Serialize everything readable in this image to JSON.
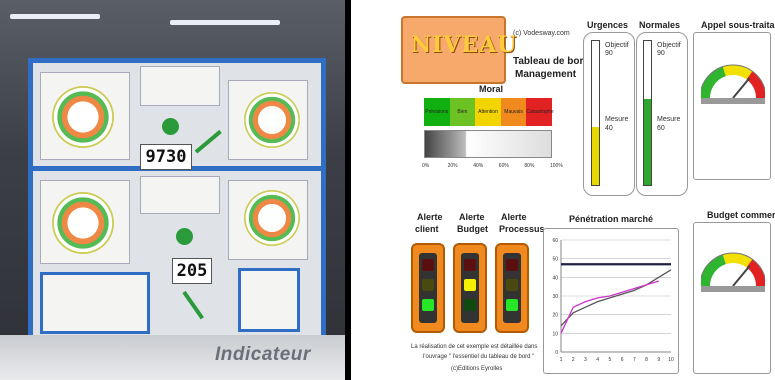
{
  "photo": {
    "counter_top": "9730",
    "counter_bottom": "205",
    "caption": "Indicateur"
  },
  "dashboard": {
    "scroll_title": "NIVEAU",
    "credit_site": "(c) Vodesway.com",
    "title_line1": "Tableau de bord",
    "title_line2": "Management",
    "moral": {
      "label": "Moral",
      "segments": [
        {
          "label": "Prévisions",
          "color": "#11b011"
        },
        {
          "label": "Bien",
          "color": "#6cc222"
        },
        {
          "label": "Attention",
          "color": "#f2d400"
        },
        {
          "label": "Mauvais",
          "color": "#f08a1e"
        },
        {
          "label": "Catastrophe",
          "color": "#e22222"
        }
      ],
      "axis_ticks": [
        "0%",
        "20%",
        "40%",
        "60%",
        "80%",
        "100%"
      ],
      "measure_fraction": 0.32
    },
    "urgences": {
      "label": "Urgences",
      "objectif_label": "Objectif",
      "objectif_value": "90",
      "mesure_label": "Mesure",
      "mesure_value": "40",
      "fill_color": "#e8d800",
      "fill_fraction": 0.4
    },
    "normales": {
      "label": "Normales",
      "objectif_label": "Objectif",
      "objectif_value": "90",
      "mesure_label": "Mesure",
      "mesure_value": "60",
      "fill_color": "#2fa82f",
      "fill_fraction": 0.6
    },
    "appel": {
      "label": "Appel sous-traitance",
      "needle_fraction": 0.72
    },
    "budget_commercial": {
      "label": "Budget commercial",
      "needle_fraction": 0.72
    },
    "alertes": [
      {
        "line1": "Alerte",
        "line2": "client",
        "lit": 2,
        "lit_color": "#27e627"
      },
      {
        "line1": "Alerte",
        "line2": "Budget",
        "lit": 1,
        "lit_color": "#f5f000"
      },
      {
        "line1": "Alerte",
        "line2": "Processus",
        "lit": 2,
        "lit_color": "#27e627"
      }
    ],
    "footnote": {
      "line1": "La réalisation de cet exemple est détaillée dans",
      "line2": "l'ouvrage \" l'essentiel du tableau de bord \"",
      "line3": "(c)Editions Eyrolles"
    },
    "penetration": {
      "label": "Pénétration marché",
      "y_ticks": [
        "0",
        "10",
        "20",
        "30",
        "40",
        "50",
        "60"
      ],
      "x_ticks": [
        "1",
        "2",
        "3",
        "4",
        "5",
        "6",
        "7",
        "8",
        "9",
        "10"
      ]
    }
  },
  "chart_data": {
    "type": "line",
    "title": "Pénétration marché",
    "xlabel": "",
    "ylabel": "",
    "x": [
      1,
      2,
      3,
      4,
      5,
      6,
      7,
      8,
      9,
      10
    ],
    "xlim": [
      1,
      10
    ],
    "ylim": [
      0,
      60
    ],
    "grid": true,
    "series": [
      {
        "values": [
          47,
          47,
          47,
          47,
          47,
          47,
          47,
          47,
          47,
          47
        ],
        "color": "#222244"
      },
      {
        "values": [
          14,
          21,
          24,
          27,
          29,
          31,
          33,
          36,
          40,
          44
        ],
        "color": "#555555"
      },
      {
        "values": [
          10,
          24,
          27,
          29,
          30,
          32,
          34,
          36,
          38,
          null
        ],
        "color": "#cc33cc"
      }
    ]
  }
}
